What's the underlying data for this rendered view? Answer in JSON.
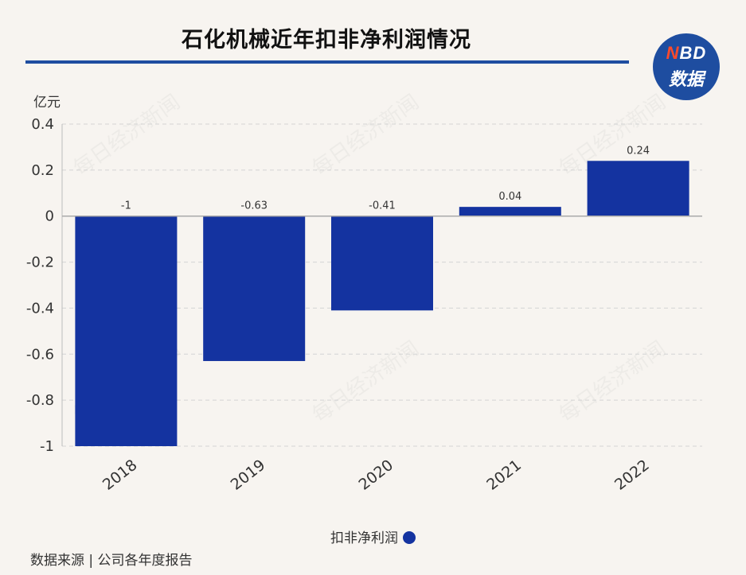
{
  "title": "石化机械近年扣非净利润情况",
  "logo": {
    "line1_n": "N",
    "line1_rest": "BD",
    "line2": "数据"
  },
  "watermark": "每日经济新闻",
  "chart_data": {
    "type": "bar",
    "title": "石化机械近年扣非净利润情况",
    "unit": "亿元",
    "categories": [
      "2018",
      "2019",
      "2020",
      "2021",
      "2022"
    ],
    "series": [
      {
        "name": "扣非净利润",
        "values": [
          -1,
          -0.63,
          -0.41,
          0.04,
          0.24
        ],
        "color": "#1433a0"
      }
    ],
    "data_labels": [
      "-1",
      "-0.63",
      "-0.41",
      "0.04",
      "0.24"
    ],
    "y_ticks": [
      "0.4",
      "0.2",
      "0",
      "-0.2",
      "-0.4",
      "-0.6",
      "-0.8",
      "-1"
    ],
    "ylim": [
      -1,
      0.4
    ],
    "grid": true,
    "legend_position": "bottom"
  },
  "source": "数据来源 | 公司各年度报告"
}
